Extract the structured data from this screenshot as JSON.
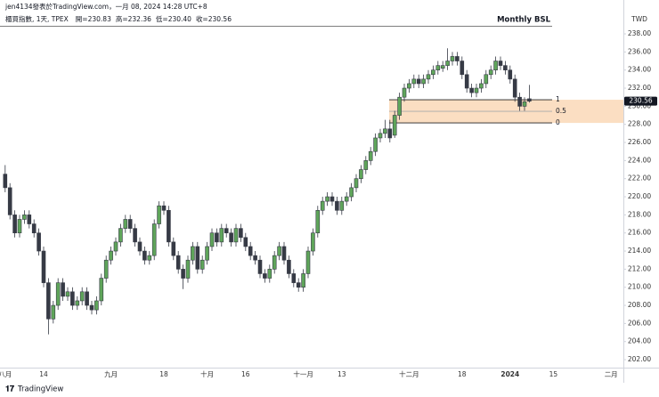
{
  "header": {
    "byline": "jen4134發表於TradingView.com，一月 08, 2024 14:28 UTC+8",
    "symbol": "櫃買指數, 1天, TPEX",
    "ohlc": [
      {
        "name": "開=",
        "value": 230.83
      },
      {
        "name": "高=",
        "value": 232.36
      },
      {
        "name": "低=",
        "value": 230.4,
        "label": "230.40"
      },
      {
        "name": "收=",
        "value": 230.56
      }
    ],
    "idea_title": "Monthly BSL"
  },
  "footer": {
    "brand": "TradingView"
  },
  "chart_data": {
    "type": "candlestick",
    "currency": "TWD",
    "up_color": "#5fa55a",
    "down_color": "#363a45",
    "fib_color": "#f9d3ad",
    "ylim": [
      201.12,
      238.79
    ],
    "yticks": [
      {
        "value": 202,
        "label": "202.00"
      },
      {
        "value": 204,
        "label": "204.00"
      },
      {
        "value": 206,
        "label": "206.00"
      },
      {
        "value": 208,
        "label": "208.00"
      },
      {
        "value": 210,
        "label": "210.00"
      },
      {
        "value": 212,
        "label": "212.00"
      },
      {
        "value": 214,
        "label": "214.00"
      },
      {
        "value": 216,
        "label": "216.00"
      },
      {
        "value": 218,
        "label": "218.00"
      },
      {
        "value": 220,
        "label": "220.00"
      },
      {
        "value": 222,
        "label": "222.00"
      },
      {
        "value": 224,
        "label": "224.00"
      },
      {
        "value": 226,
        "label": "226.00"
      },
      {
        "value": 228,
        "label": "228.00"
      },
      {
        "value": 230,
        "label": "230.00"
      },
      {
        "value": 232,
        "label": "232.00"
      },
      {
        "value": 234,
        "label": "234.00"
      },
      {
        "value": 236,
        "label": "236.00"
      },
      {
        "value": 238,
        "label": "238.00"
      }
    ],
    "fib_levels": [
      {
        "level": 1,
        "price": 230.72
      },
      {
        "level": 0.5,
        "price": 229.44
      },
      {
        "level": 0,
        "price": 228.16
      }
    ],
    "categories": [
      "八月",
      null,
      null,
      null,
      null,
      null,
      null,
      null,
      "14",
      null,
      null,
      null,
      null,
      null,
      null,
      null,
      null,
      null,
      null,
      null,
      null,
      null,
      "九月",
      null,
      null,
      null,
      null,
      null,
      null,
      null,
      null,
      null,
      null,
      "18",
      null,
      null,
      null,
      null,
      null,
      null,
      null,
      null,
      "十月",
      null,
      null,
      null,
      null,
      null,
      null,
      null,
      "16",
      null,
      null,
      null,
      null,
      null,
      null,
      null,
      null,
      null,
      null,
      null,
      "十一月",
      null,
      null,
      null,
      null,
      null,
      null,
      null,
      "13",
      null,
      null,
      null,
      null,
      null,
      null,
      null,
      null,
      null,
      null,
      null,
      null,
      null,
      "十二月",
      null,
      null,
      null,
      null,
      null,
      null,
      null,
      null,
      null,
      null,
      "18",
      null,
      null,
      null,
      null,
      null,
      null,
      null,
      null,
      null,
      "2024",
      null,
      null,
      null,
      null,
      null,
      null,
      null,
      null,
      "15",
      null,
      null,
      null,
      null,
      null,
      null,
      null,
      null,
      null,
      null,
      null,
      "二月",
      null
    ],
    "open": [
      222.5,
      221,
      218,
      216,
      217.5,
      218,
      217,
      216,
      214,
      210.5,
      206.5,
      208,
      210.5,
      209,
      209.5,
      208,
      208.5,
      209.5,
      208,
      207.5,
      208.5,
      211,
      213,
      214,
      215,
      216.5,
      217.5,
      216.5,
      215,
      214,
      213,
      213.5,
      217,
      219,
      218.5,
      215,
      213.5,
      212,
      211,
      213,
      214.5,
      212,
      213,
      214.5,
      216,
      215,
      216.5,
      216,
      215,
      216.5,
      215.5,
      214.5,
      213.5,
      213,
      211.5,
      211,
      212,
      213.5,
      214.5,
      213,
      211.5,
      210.5,
      210,
      211.5,
      214,
      216,
      218.5,
      219.5,
      220,
      219.5,
      218.5,
      219.5,
      220,
      221,
      222,
      223,
      224,
      225,
      226.5,
      227,
      227.5,
      226.8,
      229,
      231,
      232,
      232.5,
      233,
      232.5,
      233,
      233.5,
      234,
      234.2,
      234.5,
      235,
      235.5,
      235,
      233.5,
      232,
      231.5,
      232,
      232.5,
      233.5,
      234,
      235,
      234.5,
      234,
      233,
      231,
      230,
      230.83,
      null,
      null,
      null,
      null,
      null,
      null,
      null,
      null,
      null,
      null,
      null,
      null,
      null,
      null,
      null,
      null,
      null,
      null
    ],
    "high": [
      223.5,
      221.5,
      218.5,
      218,
      218.5,
      218.5,
      217.5,
      216.5,
      214.5,
      211,
      208.5,
      211,
      211,
      210,
      210,
      209,
      210,
      210,
      208.5,
      209,
      211.5,
      213.5,
      214.5,
      215.5,
      217,
      218,
      218,
      217,
      215.5,
      214.5,
      214,
      217.5,
      219.5,
      219.5,
      219,
      215.5,
      214,
      212.5,
      213.5,
      215,
      215,
      213.5,
      215,
      216.5,
      216.5,
      217,
      217,
      216.5,
      217,
      217,
      216,
      215,
      214,
      213.5,
      212,
      212.5,
      214,
      215,
      215,
      213.5,
      212,
      211,
      212,
      214.5,
      216.5,
      219,
      220,
      220.5,
      220.5,
      220,
      220,
      220.5,
      221.5,
      222.5,
      223.5,
      224.5,
      225.5,
      227,
      227.5,
      228.5,
      228.5,
      229.5,
      231.5,
      232.5,
      233,
      233.5,
      233.5,
      233.5,
      234,
      234.5,
      235,
      235,
      236.4,
      236,
      236,
      235.5,
      234,
      232.5,
      232.5,
      233,
      234,
      234.5,
      235.5,
      235.5,
      235,
      234.5,
      233.5,
      231.5,
      231,
      232.36,
      null,
      null,
      null,
      null,
      null,
      null,
      null,
      null,
      null,
      null,
      null,
      null,
      null,
      null,
      null,
      null,
      null,
      null
    ],
    "low": [
      220.5,
      217.5,
      215.5,
      215.5,
      217,
      216.5,
      215.5,
      213.5,
      210,
      204.8,
      206,
      207.5,
      208.5,
      208.5,
      207.5,
      207.5,
      208,
      207.5,
      207,
      207,
      208,
      210.5,
      212.5,
      213.5,
      214.5,
      216,
      216,
      214.5,
      213.5,
      212.5,
      212.5,
      213,
      216.5,
      218,
      214.5,
      213,
      211.5,
      209.8,
      210.5,
      212.5,
      211.5,
      211.5,
      212.5,
      214,
      214.5,
      214.5,
      215.5,
      214.5,
      214.5,
      215,
      214,
      213,
      212.5,
      211,
      210.5,
      210.5,
      211.5,
      213,
      212.5,
      211,
      210,
      209.5,
      209.5,
      211,
      213.5,
      215.5,
      218,
      219,
      219,
      218,
      218,
      219,
      219.5,
      220.5,
      221.5,
      222.5,
      223.5,
      224.5,
      226,
      226.5,
      226,
      226.5,
      228.5,
      230.5,
      231.5,
      232,
      232,
      232,
      232.5,
      233,
      233.5,
      233.8,
      234,
      234.5,
      234.5,
      233,
      231.5,
      231,
      231,
      231.5,
      232,
      233,
      233.5,
      234,
      233.5,
      232.5,
      230.5,
      229.5,
      229.5,
      230.4,
      null,
      null,
      null,
      null,
      null,
      null,
      null,
      null,
      null,
      null,
      null,
      null,
      null,
      null,
      null,
      null,
      null,
      null
    ],
    "close": [
      221,
      218,
      216,
      217.5,
      218,
      217,
      216,
      214,
      210.5,
      206.5,
      208,
      210.5,
      209,
      209.5,
      208,
      208.5,
      209.5,
      208,
      207.5,
      208.5,
      211,
      213,
      214,
      215,
      216.5,
      217.5,
      216.5,
      215,
      214,
      213,
      213.5,
      217,
      219,
      218.5,
      215,
      213.5,
      212,
      211,
      213,
      214.5,
      212,
      213,
      214.5,
      216,
      215,
      216.5,
      216,
      215,
      216.5,
      215.5,
      214.5,
      213.5,
      213,
      211.5,
      211,
      212,
      213.5,
      214.5,
      213,
      211.5,
      210.5,
      210,
      211.5,
      214,
      216,
      218.5,
      219.5,
      220,
      219.5,
      218.5,
      219.5,
      220,
      221,
      222,
      223,
      224,
      225,
      226.5,
      227,
      227.5,
      226.5,
      229,
      231,
      232,
      232.5,
      233,
      232.5,
      233,
      233.5,
      234,
      234.5,
      234.5,
      235,
      235.5,
      235,
      233.5,
      232,
      231.5,
      232,
      232.5,
      233.5,
      234,
      235,
      234.5,
      234,
      233,
      231,
      230,
      230.5,
      230.56,
      null,
      null,
      null,
      null,
      null,
      null,
      null,
      null,
      null,
      null,
      null,
      null,
      null,
      null,
      null,
      null,
      null,
      null
    ]
  }
}
